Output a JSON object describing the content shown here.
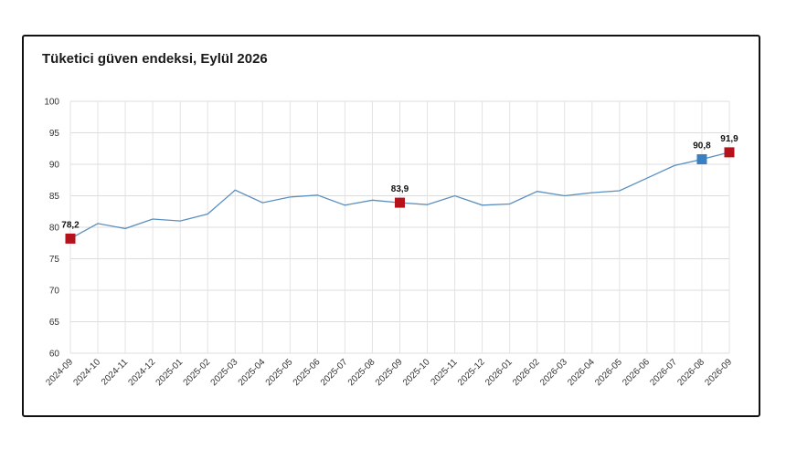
{
  "chart_data": {
    "type": "line",
    "title": "Tüketici güven endeksi, Eylül 2026",
    "xlabel": "",
    "ylabel": "",
    "ylim": [
      60,
      100
    ],
    "yticks": [
      60,
      65,
      70,
      75,
      80,
      85,
      90,
      95,
      100
    ],
    "grid": true,
    "categories": [
      "2024-09",
      "2024-10",
      "2024-11",
      "2024-12",
      "2025-01",
      "2025-02",
      "2025-03",
      "2025-04",
      "2025-05",
      "2025-06",
      "2025-07",
      "2025-08",
      "2025-09",
      "2025-10",
      "2025-11",
      "2025-12",
      "2026-01",
      "2026-02",
      "2026-03",
      "2026-04",
      "2026-05",
      "2026-06",
      "2026-07",
      "2026-08",
      "2026-09"
    ],
    "series": [
      {
        "values": [
          78.2,
          80.6,
          79.8,
          81.3,
          81.0,
          82.1,
          85.9,
          83.9,
          84.8,
          85.1,
          83.5,
          84.3,
          83.9,
          83.6,
          85.0,
          83.5,
          83.7,
          85.7,
          85.0,
          85.5,
          85.8,
          87.8,
          89.8,
          90.8,
          91.9
        ],
        "color": "#5a8fbf"
      }
    ],
    "highlights": [
      {
        "category": "2024-09",
        "value": 78.2,
        "label": "78,2",
        "color": "#b5121b"
      },
      {
        "category": "2025-09",
        "value": 83.9,
        "label": "83,9",
        "color": "#b5121b"
      },
      {
        "category": "2026-08",
        "value": 90.8,
        "label": "90,8",
        "color": "#3a7fc1"
      },
      {
        "category": "2026-09",
        "value": 91.9,
        "label": "91,9",
        "color": "#b5121b"
      }
    ]
  }
}
